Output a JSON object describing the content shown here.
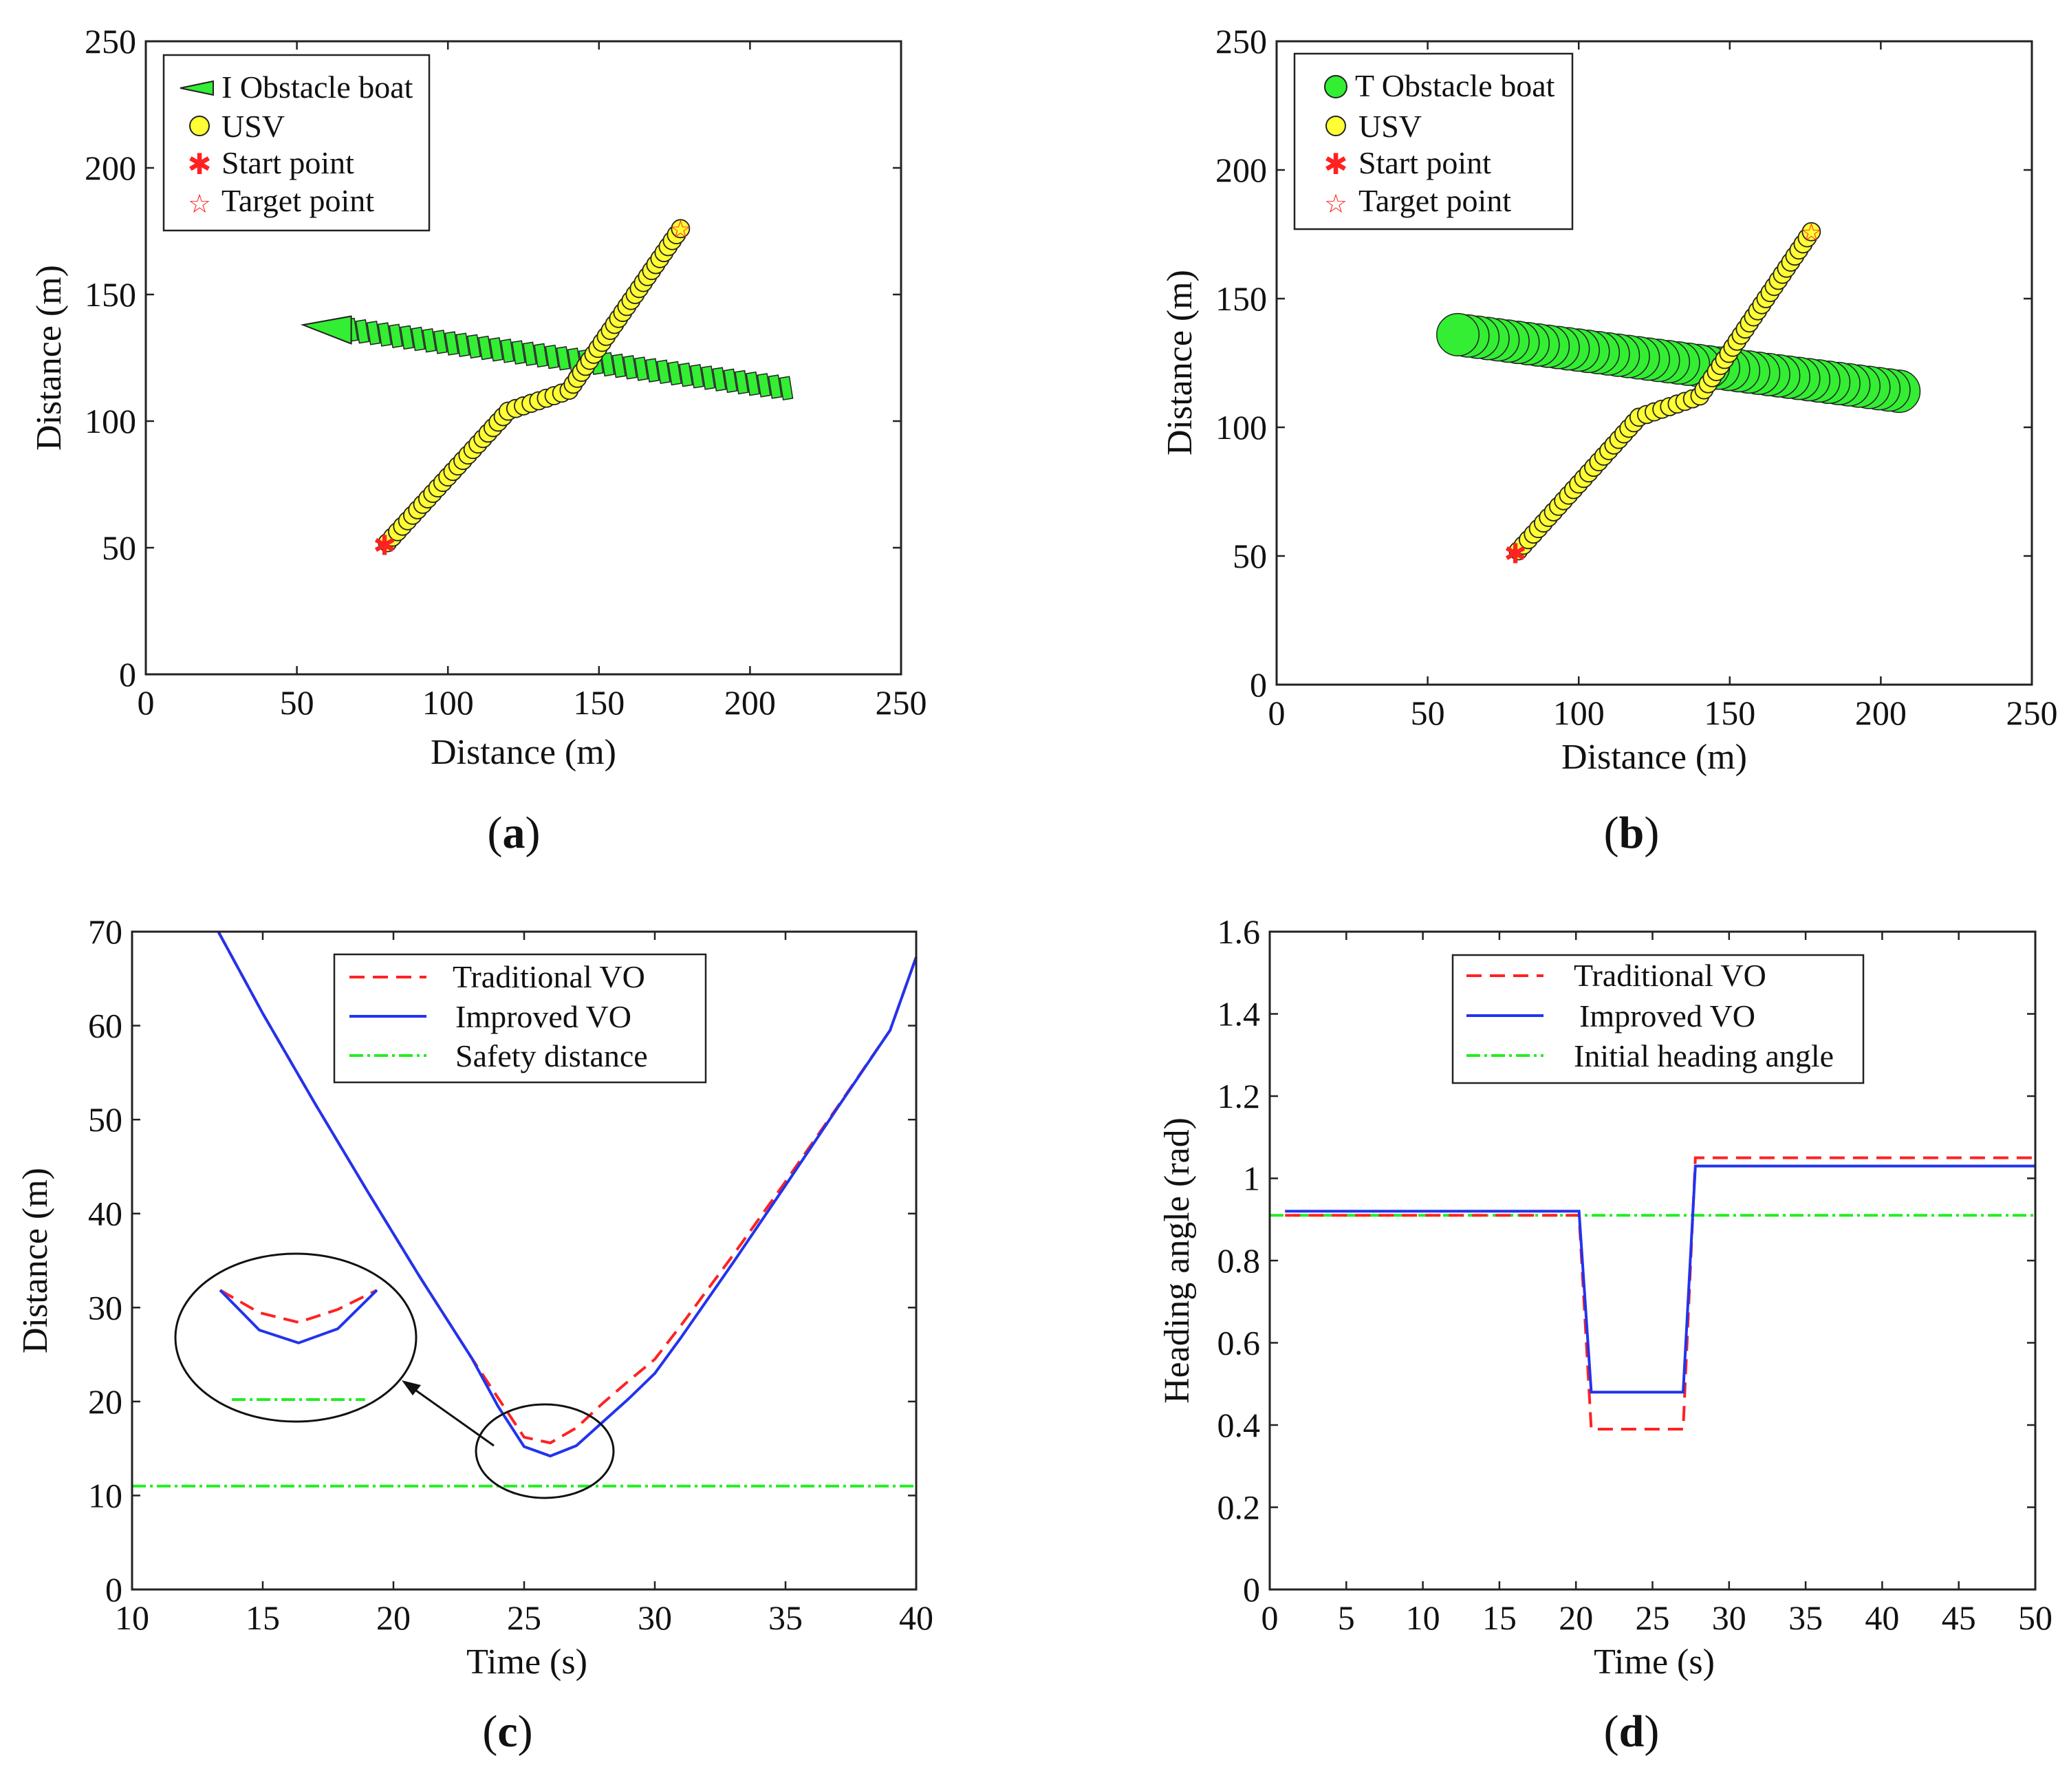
{
  "chart_data": [
    {
      "type": "scatter",
      "panel_label": "a",
      "title": "",
      "xlabel": "Distance (m)",
      "ylabel": "Distance (m)",
      "xlim": [
        0,
        250
      ],
      "ylim": [
        0,
        250
      ],
      "xticks": [
        0,
        50,
        100,
        150,
        200,
        250
      ],
      "yticks": [
        0,
        50,
        100,
        150,
        200,
        250
      ],
      "legend": {
        "placement": "top-left",
        "items": [
          {
            "label": "I Obstacle boat",
            "marker": "triangle",
            "color": "#33ee33"
          },
          {
            "label": "USV",
            "marker": "circle",
            "color": "#ffff33"
          },
          {
            "label": "Start point",
            "marker": "asterisk",
            "color": "#ff2222"
          },
          {
            "label": "Target point",
            "marker": "star",
            "color": "#ff2222"
          }
        ]
      },
      "series": [
        {
          "name": "I Obstacle boat",
          "kind": "obstacle-triangle",
          "start": [
            212,
            113
          ],
          "end": [
            68,
            136
          ],
          "tip": [
            52,
            138
          ],
          "count": 40
        },
        {
          "name": "USV",
          "kind": "path",
          "waypoints": [
            [
              80,
              52
            ],
            [
              120,
              104
            ],
            [
              140,
              112
            ],
            [
              177,
              176
            ]
          ],
          "count": 60
        },
        {
          "name": "Start point",
          "kind": "start",
          "point": [
            79,
            51
          ]
        },
        {
          "name": "Target point",
          "kind": "target",
          "point": [
            177,
            176
          ]
        }
      ]
    },
    {
      "type": "scatter",
      "panel_label": "b",
      "title": "",
      "xlabel": "Distance (m)",
      "ylabel": "Distance (m)",
      "xlim": [
        0,
        250
      ],
      "ylim": [
        0,
        250
      ],
      "xticks": [
        0,
        50,
        100,
        150,
        200,
        250
      ],
      "yticks": [
        0,
        50,
        100,
        150,
        200,
        250
      ],
      "legend": {
        "placement": "top-left",
        "items": [
          {
            "label": "T Obstacle boat",
            "marker": "circle",
            "color": "#33ee33"
          },
          {
            "label": "USV",
            "marker": "circle",
            "color": "#ffff33"
          },
          {
            "label": "Start point",
            "marker": "asterisk",
            "color": "#ff2222"
          },
          {
            "label": "Target point",
            "marker": "star",
            "color": "#ff2222"
          }
        ]
      },
      "series": [
        {
          "name": "T Obstacle boat",
          "kind": "obstacle-circle",
          "start": [
            206,
            114
          ],
          "end": [
            60,
            136
          ],
          "radius": 7,
          "count": 45
        },
        {
          "name": "USV",
          "kind": "path",
          "waypoints": [
            [
              80,
              52
            ],
            [
              120,
              104
            ],
            [
              140,
              112
            ],
            [
              177,
              176
            ]
          ],
          "count": 60
        },
        {
          "name": "Start point",
          "kind": "start",
          "point": [
            79,
            51
          ]
        },
        {
          "name": "Target point",
          "kind": "target",
          "point": [
            177,
            176
          ]
        }
      ]
    },
    {
      "type": "line",
      "panel_label": "c",
      "title": "",
      "xlabel": "Time (s)",
      "ylabel": "Distance (m)",
      "xlim": [
        10,
        40
      ],
      "ylim": [
        0,
        70
      ],
      "xticks": [
        10,
        15,
        20,
        25,
        30,
        35,
        40
      ],
      "yticks": [
        0,
        10,
        20,
        30,
        40,
        50,
        60,
        70
      ],
      "legend": {
        "placement": "top-center"
      },
      "series": [
        {
          "name": "Traditional VO",
          "color": "#ff2222",
          "style": "dashed",
          "x": [
            13.3,
            15,
            17,
            19,
            21,
            23,
            24,
            25,
            26,
            27,
            28,
            29,
            30,
            31,
            33,
            35,
            37,
            39,
            40
          ],
          "y": [
            70,
            61.3,
            51.7,
            42.4,
            33.3,
            24.6,
            20.4,
            16.2,
            15.6,
            17.2,
            19.8,
            22.2,
            24.5,
            28.1,
            35.6,
            43.4,
            51.4,
            59.5,
            67.3
          ]
        },
        {
          "name": "Improved VO",
          "color": "#2233ee",
          "style": "solid",
          "x": [
            13.3,
            15,
            17,
            19,
            21,
            23,
            24,
            25,
            26,
            27,
            28,
            29,
            30,
            31,
            33,
            35,
            37,
            39,
            40
          ],
          "y": [
            70,
            61.3,
            51.7,
            42.4,
            33.3,
            24.6,
            19.5,
            15.2,
            14.2,
            15.3,
            17.8,
            20.3,
            23,
            26.8,
            34.8,
            43,
            51.3,
            59.5,
            67.3
          ]
        },
        {
          "name": "Safety distance",
          "color": "#22ee22",
          "style": "dash-dot",
          "x": [
            10,
            40
          ],
          "y": [
            11,
            11
          ]
        }
      ],
      "inset": {
        "type": "zoom",
        "series": [
          {
            "name": "Traditional VO",
            "color": "#ff2222",
            "style": "dashed",
            "x": [
              0,
              1,
              2,
              3,
              4
            ],
            "y": [
              0.0,
              0.35,
              0.5,
              0.3,
              0.0
            ]
          },
          {
            "name": "Improved VO",
            "color": "#2233ee",
            "style": "solid",
            "x": [
              0,
              1,
              2,
              3,
              4
            ],
            "y": [
              0.0,
              0.62,
              0.82,
              0.6,
              0.0
            ]
          },
          {
            "name": "Safety distance",
            "color": "#22ee22",
            "style": "dash-dot",
            "x": [
              0.3,
              3.7
            ],
            "y": [
              1.7,
              1.7
            ]
          }
        ]
      }
    },
    {
      "type": "line",
      "panel_label": "d",
      "title": "",
      "xlabel": "Time (s)",
      "ylabel": "Heading angle  (rad)",
      "xlim": [
        0,
        50
      ],
      "ylim": [
        0,
        1.6
      ],
      "xticks": [
        0,
        5,
        10,
        15,
        20,
        25,
        30,
        35,
        40,
        45,
        50
      ],
      "yticks": [
        0,
        0.2,
        0.4,
        0.6,
        0.8,
        1,
        1.2,
        1.4,
        1.6
      ],
      "legend": {
        "placement": "top-center"
      },
      "series": [
        {
          "name": "Traditional VO",
          "color": "#ff2222",
          "style": "dashed",
          "x": [
            1,
            20.2,
            21,
            27,
            27.8,
            50
          ],
          "y": [
            0.91,
            0.91,
            0.39,
            0.39,
            1.05,
            1.05
          ]
        },
        {
          "name": "Improved VO",
          "color": "#2233ee",
          "style": "solid",
          "x": [
            1,
            20.2,
            21,
            27,
            27.8,
            50
          ],
          "y": [
            0.92,
            0.92,
            0.48,
            0.48,
            1.03,
            1.03
          ]
        },
        {
          "name": "Initial heading angle",
          "color": "#22ee22",
          "style": "dash-dot",
          "x": [
            0,
            50
          ],
          "y": [
            0.91,
            0.91
          ]
        }
      ]
    }
  ]
}
